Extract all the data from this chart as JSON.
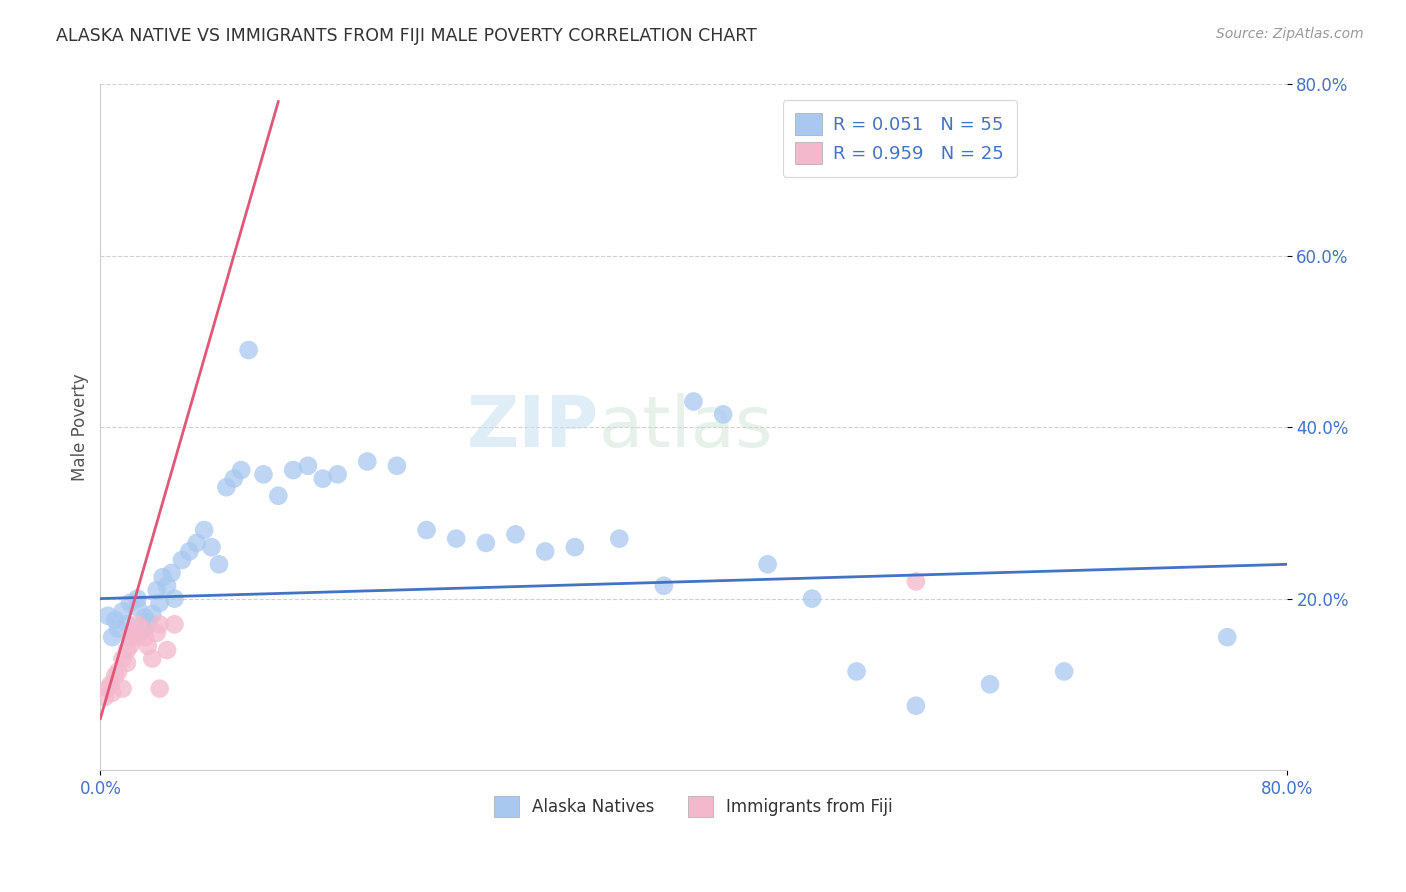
{
  "title": "ALASKA NATIVE VS IMMIGRANTS FROM FIJI MALE POVERTY CORRELATION CHART",
  "source": "Source: ZipAtlas.com",
  "ylabel_label": "Male Poverty",
  "xlim": [
    0.0,
    0.8
  ],
  "ylim": [
    0.0,
    0.8
  ],
  "watermark_zip": "ZIP",
  "watermark_atlas": "atlas",
  "legend1_label": "R = 0.051   N = 55",
  "legend2_label": "R = 0.959   N = 25",
  "alaska_color": "#a8c8f0",
  "fiji_color": "#f4b8cc",
  "alaska_line_color": "#4472c4",
  "fiji_line_color": "#e05878",
  "legend_text_color": "#4472c4",
  "tick_color": "#4472c4",
  "alaska_scatter_x": [
    0.005,
    0.008,
    0.01,
    0.012,
    0.015,
    0.018,
    0.02,
    0.022,
    0.025,
    0.025,
    0.03,
    0.03,
    0.032,
    0.035,
    0.038,
    0.04,
    0.042,
    0.045,
    0.048,
    0.05,
    0.055,
    0.06,
    0.065,
    0.07,
    0.075,
    0.08,
    0.085,
    0.09,
    0.095,
    0.1,
    0.11,
    0.12,
    0.13,
    0.14,
    0.15,
    0.16,
    0.18,
    0.2,
    0.22,
    0.24,
    0.26,
    0.28,
    0.3,
    0.32,
    0.35,
    0.38,
    0.4,
    0.42,
    0.45,
    0.48,
    0.51,
    0.55,
    0.6,
    0.65,
    0.76
  ],
  "alaska_scatter_y": [
    0.18,
    0.155,
    0.175,
    0.165,
    0.185,
    0.17,
    0.195,
    0.16,
    0.19,
    0.2,
    0.178,
    0.165,
    0.172,
    0.182,
    0.21,
    0.195,
    0.225,
    0.215,
    0.23,
    0.2,
    0.245,
    0.255,
    0.265,
    0.28,
    0.26,
    0.24,
    0.33,
    0.34,
    0.35,
    0.49,
    0.345,
    0.32,
    0.35,
    0.355,
    0.34,
    0.345,
    0.36,
    0.355,
    0.28,
    0.27,
    0.265,
    0.275,
    0.255,
    0.26,
    0.27,
    0.215,
    0.43,
    0.415,
    0.24,
    0.2,
    0.115,
    0.075,
    0.1,
    0.115,
    0.155
  ],
  "fiji_scatter_x": [
    0.003,
    0.005,
    0.007,
    0.008,
    0.01,
    0.012,
    0.015,
    0.015,
    0.018,
    0.018,
    0.02,
    0.02,
    0.022,
    0.025,
    0.025,
    0.028,
    0.03,
    0.032,
    0.035,
    0.038,
    0.04,
    0.04,
    0.045,
    0.05,
    0.55
  ],
  "fiji_scatter_y": [
    0.085,
    0.095,
    0.1,
    0.09,
    0.11,
    0.115,
    0.13,
    0.095,
    0.125,
    0.14,
    0.145,
    0.155,
    0.16,
    0.155,
    0.17,
    0.165,
    0.155,
    0.145,
    0.13,
    0.16,
    0.17,
    0.095,
    0.14,
    0.17,
    0.22
  ],
  "alaska_trend_x": [
    0.0,
    0.8
  ],
  "alaska_trend_y": [
    0.2,
    0.24
  ],
  "fiji_trend_x": [
    0.0,
    0.12
  ],
  "fiji_trend_y": [
    0.06,
    0.78
  ]
}
